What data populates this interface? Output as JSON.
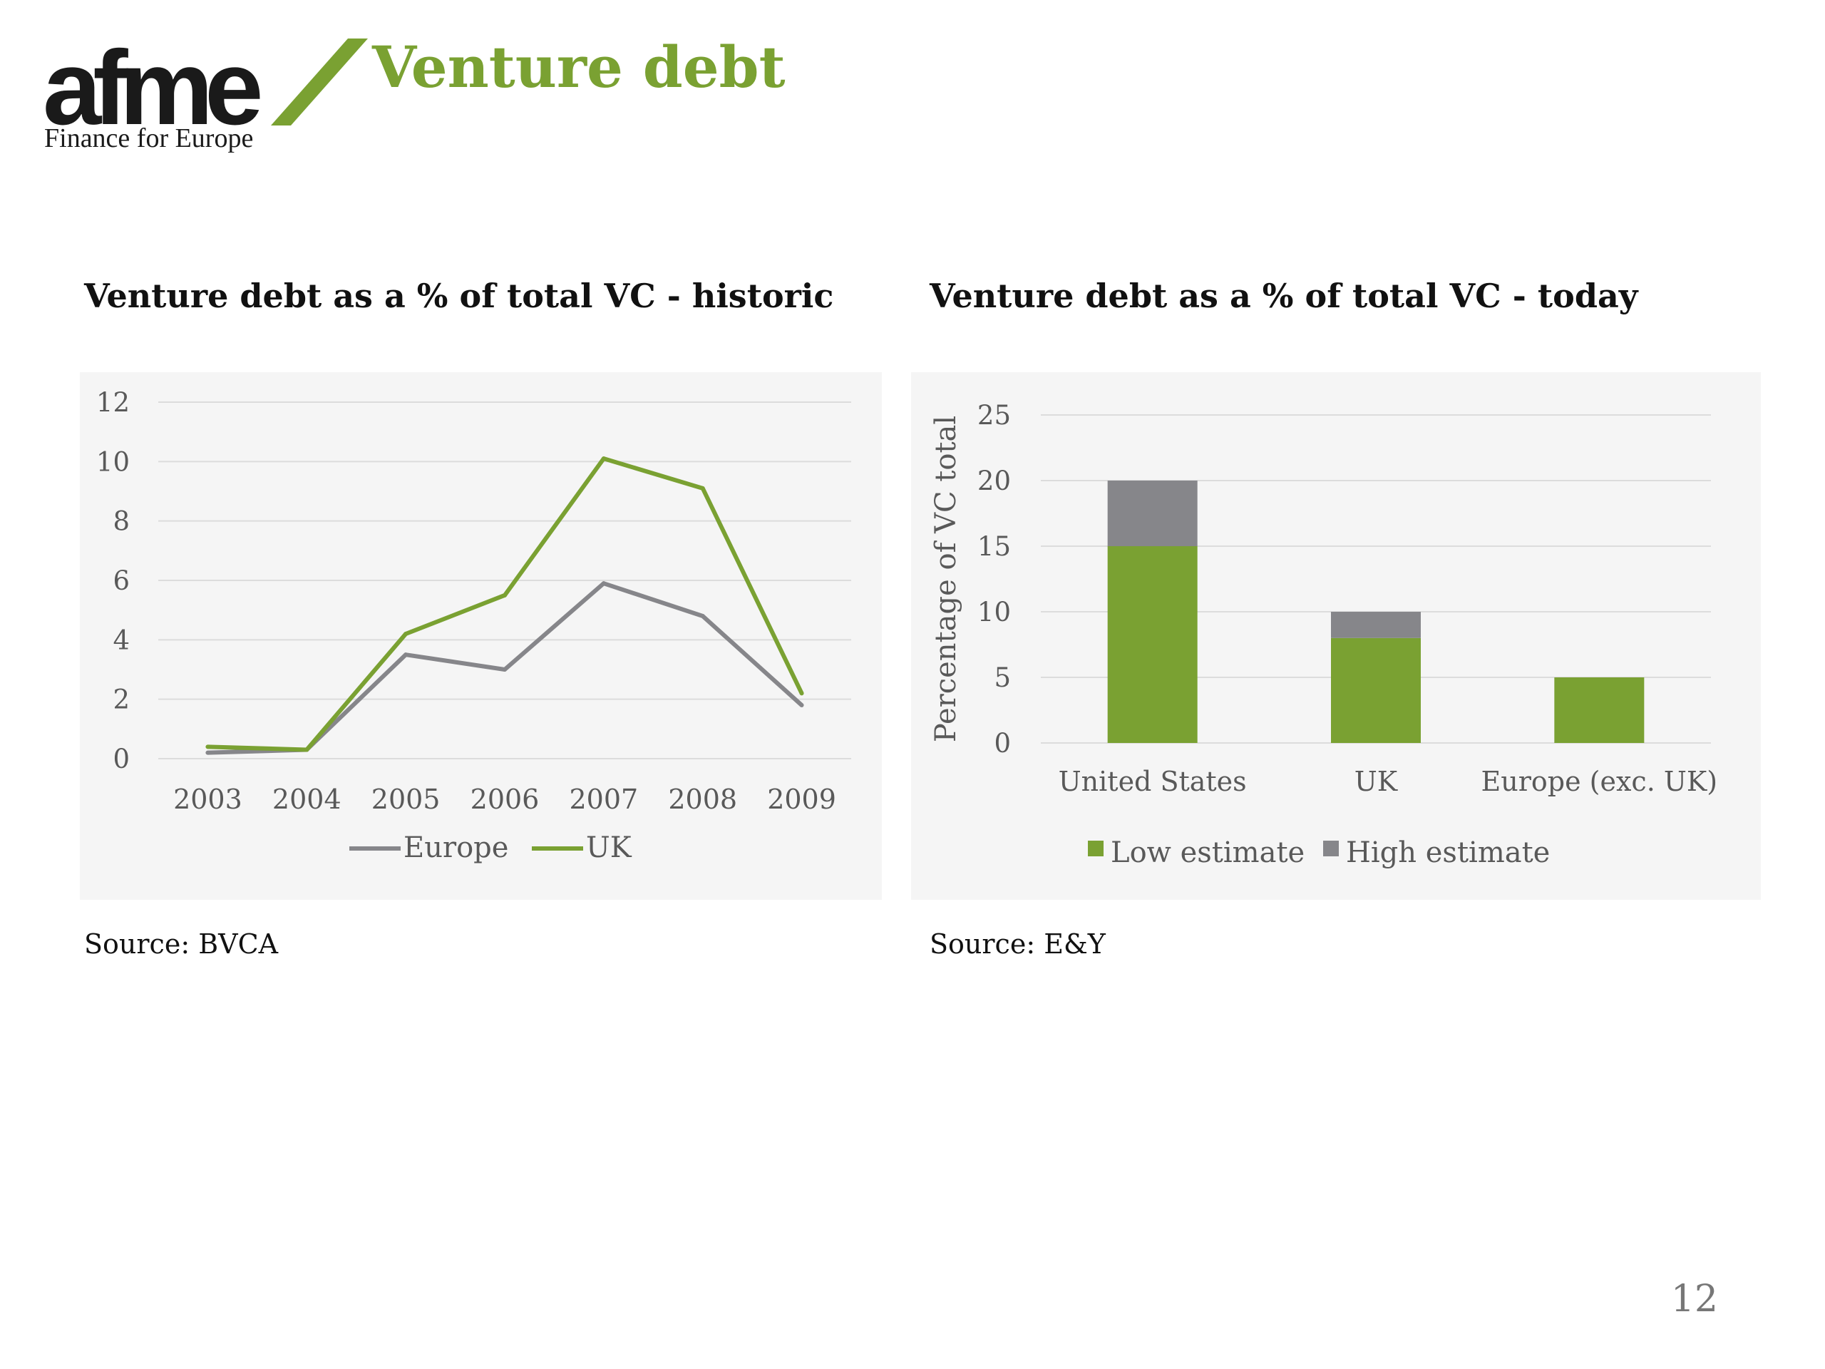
{
  "logo": {
    "wordmark": "afme",
    "tagline": "Finance for Europe",
    "slash_color": "#7aa132"
  },
  "title": "Venture debt",
  "page_number": "12",
  "colors": {
    "accent": "#7aa132",
    "grey_series": "#86868a",
    "panel_bg": "#f5f5f5",
    "gridline": "#dcdcdc"
  },
  "chart_data": [
    {
      "type": "line",
      "title": "Venture debt as a % of total VC - historic",
      "source": "Source: BVCA",
      "x": [
        "2003",
        "2004",
        "2005",
        "2006",
        "2007",
        "2008",
        "2009"
      ],
      "series": [
        {
          "name": "Europe",
          "color": "#86868a",
          "values": [
            0.2,
            0.3,
            3.5,
            3.0,
            5.9,
            4.8,
            1.8
          ]
        },
        {
          "name": "UK",
          "color": "#7aa132",
          "values": [
            0.4,
            0.3,
            4.2,
            5.5,
            10.1,
            9.1,
            2.2
          ]
        }
      ],
      "ylim": [
        0,
        12
      ],
      "yticks": [
        0,
        2,
        4,
        6,
        8,
        10,
        12
      ],
      "xlabel": "",
      "ylabel": "",
      "grid": true,
      "legend": "bottom"
    },
    {
      "type": "bar",
      "stacked": true,
      "title": "Venture debt as a % of total VC - today",
      "source": "Source: E&Y",
      "categories": [
        "United States",
        "UK",
        "Europe (exc. UK)"
      ],
      "series": [
        {
          "name": "Low estimate",
          "color": "#7aa132",
          "values": [
            15,
            8,
            5
          ]
        },
        {
          "name": "High estimate",
          "color": "#86868a",
          "values": [
            5,
            2,
            0
          ]
        }
      ],
      "ylim": [
        0,
        25
      ],
      "yticks": [
        0,
        5,
        10,
        15,
        20,
        25
      ],
      "xlabel": "",
      "ylabel": "Percentage of VC total",
      "grid": true,
      "legend": "bottom"
    }
  ]
}
